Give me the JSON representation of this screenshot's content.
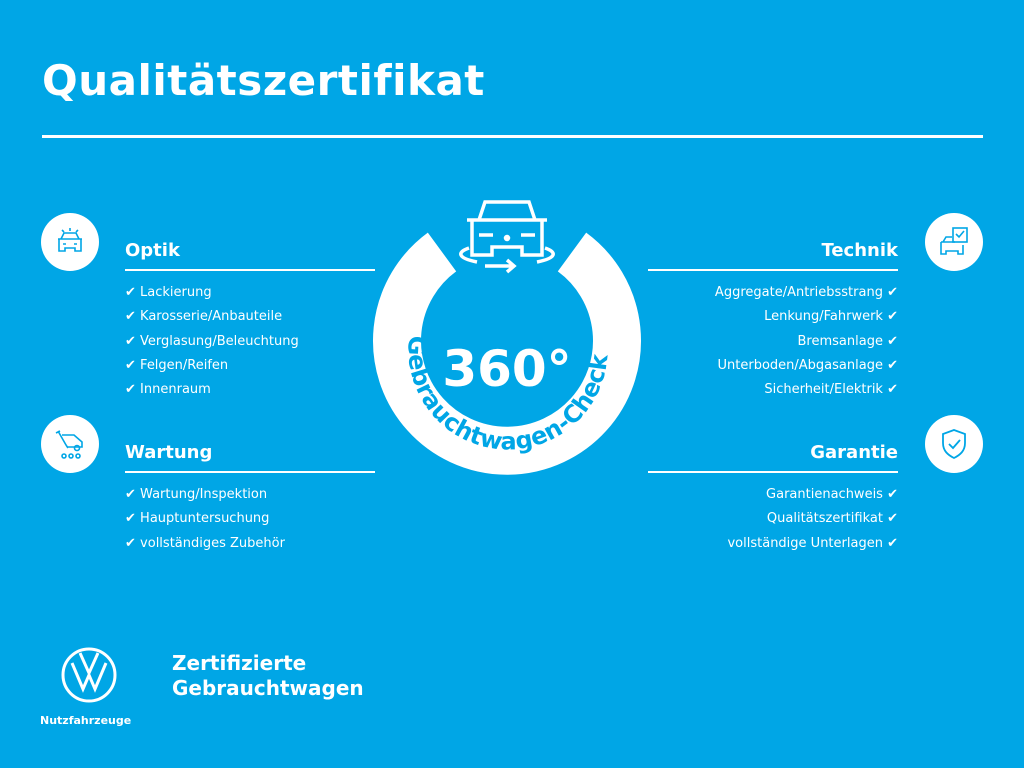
{
  "title": "Qualitätszertifikat",
  "check_mark": "✔",
  "center": {
    "number": "360°",
    "arc_text": "Gebrauchtwagen-Check"
  },
  "sections": {
    "optik": {
      "title": "Optik",
      "icon": "car-front-icon",
      "items": [
        "Lackierung",
        "Karosserie/Anbauteile",
        "Verglasung/Beleuchtung",
        "Felgen/Reifen",
        "Innenraum"
      ]
    },
    "wartung": {
      "title": "Wartung",
      "icon": "van-service-icon",
      "items": [
        "Wartung/Inspektion",
        "Hauptuntersuchung",
        "vollständiges Zubehör"
      ]
    },
    "technik": {
      "title": "Technik",
      "icon": "car-checklist-icon",
      "items": [
        "Aggregate/Antriebsstrang",
        "Lenkung/Fahrwerk",
        "Bremsanlage",
        "Unterboden/Abgasanlage",
        "Sicherheit/Elektrik"
      ]
    },
    "garantie": {
      "title": "Garantie",
      "icon": "shield-check-icon",
      "items": [
        "Garantienachweis",
        "Qualitätszertifikat",
        "vollständige Unterlagen"
      ]
    }
  },
  "brand": {
    "line1": "Zertifizierte",
    "line2": "Gebrauchtwagen",
    "sub": "Nutzfahrzeuge",
    "logo": "vw-logo"
  },
  "colors": {
    "background": "#00a6e6",
    "foreground": "#ffffff"
  }
}
